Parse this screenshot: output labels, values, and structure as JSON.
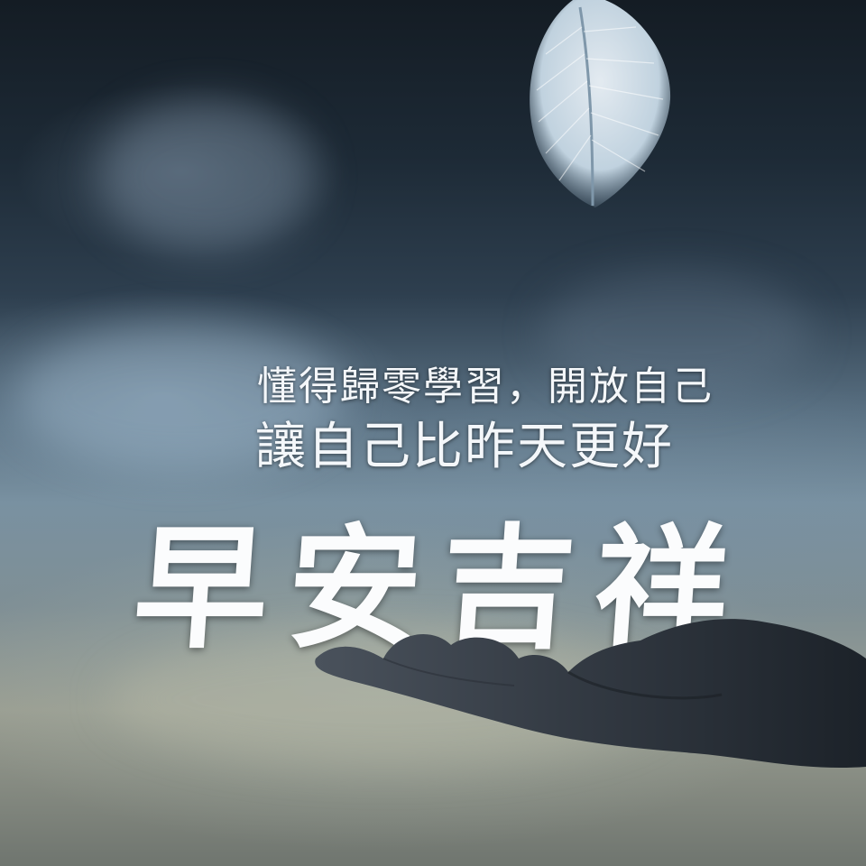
{
  "photo": {
    "description_icon": "feather-icon",
    "hand_icon": "open-hand-icon"
  },
  "quote": {
    "line1": "懂得歸零學習，開放自己",
    "line2": "讓自己比昨天更好"
  },
  "greeting": "早安吉祥",
  "colors": {
    "text": "#f4f7fa",
    "sky_dark": "#141c24",
    "mist": "#7991a1"
  }
}
